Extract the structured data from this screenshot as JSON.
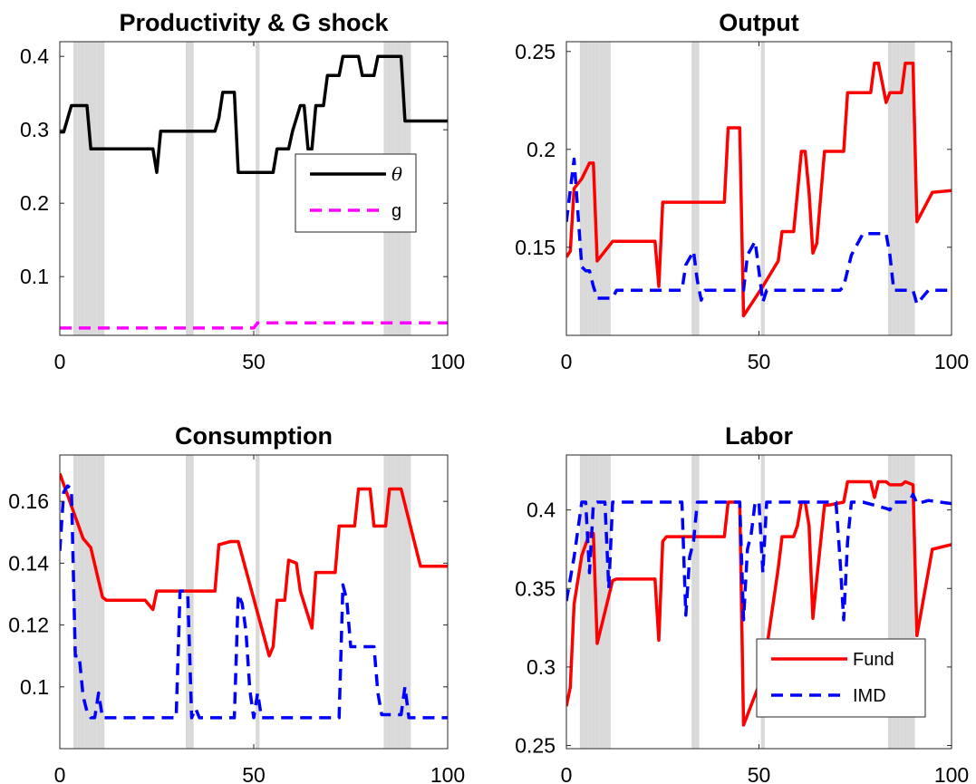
{
  "chart_data": [
    {
      "type": "line",
      "title": "Productivity & G shock",
      "xlim": [
        0,
        100
      ],
      "ylim": [
        0.02,
        0.42
      ],
      "xticks": [
        "0",
        "50",
        "100"
      ],
      "yticks": [
        "0.1",
        "0.2",
        "0.3",
        "0.4"
      ],
      "shaded_x": [
        4,
        5,
        6,
        7,
        8,
        9,
        10,
        11,
        33,
        34,
        51,
        84,
        85,
        86,
        87,
        88,
        89,
        90
      ],
      "legend": {
        "position": "center-right"
      },
      "series": [
        {
          "name": "θ",
          "color": "#000000",
          "dash": "solid",
          "x": [
            0,
            1,
            3,
            7,
            8,
            24,
            25,
            26,
            40,
            41,
            42,
            45,
            46,
            47,
            55,
            56,
            59,
            60,
            62,
            63,
            64,
            65,
            66,
            68,
            69,
            72,
            73,
            77,
            78,
            79,
            81,
            82,
            85,
            86,
            88,
            89,
            90,
            100
          ],
          "y": [
            0.297,
            0.297,
            0.333,
            0.333,
            0.274,
            0.274,
            0.242,
            0.298,
            0.298,
            0.316,
            0.351,
            0.351,
            0.242,
            0.242,
            0.242,
            0.274,
            0.274,
            0.298,
            0.333,
            0.333,
            0.274,
            0.274,
            0.333,
            0.333,
            0.374,
            0.374,
            0.4,
            0.4,
            0.374,
            0.374,
            0.374,
            0.4,
            0.4,
            0.4,
            0.4,
            0.312,
            0.312,
            0.312
          ]
        },
        {
          "name": "g",
          "color": "#ff00ff",
          "dash": "dashed",
          "x": [
            0,
            50,
            51,
            52,
            100
          ],
          "y": [
            0.03,
            0.03,
            0.037,
            0.037,
            0.037
          ]
        }
      ]
    },
    {
      "type": "line",
      "title": "Output",
      "xlim": [
        0,
        100
      ],
      "ylim": [
        0.105,
        0.255
      ],
      "xticks": [
        "0",
        "50",
        "100"
      ],
      "yticks": [
        "0.15",
        "0.2",
        "0.25"
      ],
      "shaded_x": [
        4,
        5,
        6,
        7,
        8,
        9,
        10,
        11,
        33,
        34,
        51,
        84,
        85,
        86,
        87,
        88,
        89,
        90
      ],
      "series": [
        {
          "name": "Fund",
          "color": "#ff0000",
          "dash": "solid",
          "x": [
            0,
            1,
            2,
            4,
            6,
            7,
            8,
            12,
            13,
            19,
            22,
            23,
            24,
            25,
            26,
            35,
            41,
            42,
            44,
            45,
            46,
            51,
            55,
            56,
            58,
            59,
            60,
            61,
            62,
            63,
            64,
            65,
            67,
            68,
            72,
            73,
            75,
            76,
            79,
            80,
            81,
            83,
            84,
            87,
            88,
            90,
            91,
            95,
            100
          ],
          "y": [
            0.145,
            0.148,
            0.18,
            0.185,
            0.193,
            0.193,
            0.143,
            0.153,
            0.153,
            0.153,
            0.153,
            0.153,
            0.13,
            0.173,
            0.173,
            0.173,
            0.173,
            0.211,
            0.211,
            0.211,
            0.115,
            0.13,
            0.143,
            0.158,
            0.158,
            0.158,
            0.178,
            0.199,
            0.199,
            0.178,
            0.147,
            0.152,
            0.199,
            0.199,
            0.199,
            0.229,
            0.229,
            0.229,
            0.229,
            0.244,
            0.244,
            0.224,
            0.229,
            0.229,
            0.244,
            0.244,
            0.163,
            0.178,
            0.179
          ]
        },
        {
          "name": "IMD",
          "color": "#0000ff",
          "dash": "dashed",
          "x": [
            0,
            2,
            4,
            5,
            6,
            7,
            8,
            12,
            13,
            15,
            30,
            31,
            33,
            34,
            35,
            36,
            38,
            46,
            47,
            49,
            51,
            52,
            55,
            70,
            71,
            72,
            74,
            77,
            83,
            84,
            85,
            88,
            89,
            90,
            91,
            94,
            100
          ],
          "y": [
            0.163,
            0.195,
            0.14,
            0.138,
            0.138,
            0.13,
            0.124,
            0.124,
            0.128,
            0.128,
            0.128,
            0.141,
            0.148,
            0.133,
            0.123,
            0.128,
            0.128,
            0.128,
            0.146,
            0.153,
            0.122,
            0.128,
            0.128,
            0.128,
            0.128,
            0.13,
            0.146,
            0.157,
            0.157,
            0.146,
            0.128,
            0.128,
            0.128,
            0.128,
            0.121,
            0.128,
            0.128
          ]
        }
      ]
    },
    {
      "type": "line",
      "title": "Consumption",
      "xlim": [
        0,
        100
      ],
      "ylim": [
        0.08,
        0.175
      ],
      "xticks": [
        "0",
        "50",
        "100"
      ],
      "yticks": [
        "0.1",
        "0.12",
        "0.14",
        "0.16"
      ],
      "shaded_x": [
        4,
        5,
        6,
        7,
        8,
        9,
        10,
        11,
        33,
        34,
        51,
        84,
        85,
        86,
        87,
        88,
        89,
        90
      ],
      "series": [
        {
          "name": "Fund",
          "color": "#ff0000",
          "dash": "solid",
          "x": [
            0,
            4,
            6,
            8,
            11,
            12,
            16,
            22,
            24,
            25,
            30,
            40,
            41,
            44,
            45,
            46,
            54,
            55,
            56,
            58,
            59,
            61,
            62,
            65,
            66,
            71,
            72,
            75,
            76,
            77,
            80,
            81,
            84,
            85,
            88,
            93,
            100
          ],
          "y": [
            0.169,
            0.155,
            0.148,
            0.145,
            0.129,
            0.128,
            0.128,
            0.128,
            0.125,
            0.131,
            0.131,
            0.131,
            0.146,
            0.147,
            0.147,
            0.147,
            0.11,
            0.113,
            0.128,
            0.128,
            0.141,
            0.14,
            0.131,
            0.119,
            0.137,
            0.137,
            0.152,
            0.152,
            0.152,
            0.164,
            0.164,
            0.152,
            0.152,
            0.164,
            0.164,
            0.139,
            0.139
          ]
        },
        {
          "name": "IMD",
          "color": "#0000ff",
          "dash": "dashed",
          "x": [
            0,
            1,
            2,
            3,
            4,
            5,
            6,
            7,
            8,
            9,
            10,
            11,
            12,
            14,
            30,
            31,
            32,
            33,
            34,
            35,
            36,
            38,
            45,
            46,
            47,
            48,
            49,
            50,
            51,
            52,
            53,
            54,
            70,
            71,
            72,
            73,
            74,
            75,
            78,
            81,
            82,
            83,
            84,
            85,
            86,
            87,
            88,
            89,
            90,
            100
          ],
          "y": [
            0.144,
            0.163,
            0.165,
            0.164,
            0.11,
            0.11,
            0.097,
            0.092,
            0.09,
            0.09,
            0.098,
            0.09,
            0.09,
            0.09,
            0.09,
            0.131,
            0.131,
            0.13,
            0.09,
            0.093,
            0.09,
            0.09,
            0.09,
            0.13,
            0.127,
            0.118,
            0.099,
            0.09,
            0.098,
            0.09,
            0.09,
            0.09,
            0.09,
            0.09,
            0.09,
            0.133,
            0.128,
            0.113,
            0.113,
            0.113,
            0.098,
            0.091,
            0.091,
            0.091,
            0.091,
            0.091,
            0.091,
            0.1,
            0.09,
            0.09
          ]
        }
      ]
    },
    {
      "type": "line",
      "title": "Labor",
      "xlim": [
        0,
        100
      ],
      "ylim": [
        0.248,
        0.435
      ],
      "xticks": [
        "0",
        "50",
        "100"
      ],
      "yticks": [
        "0.25",
        "0.3",
        "0.35",
        "0.4"
      ],
      "shaded_x": [
        4,
        5,
        6,
        7,
        8,
        9,
        10,
        11,
        33,
        34,
        51,
        84,
        85,
        86,
        87,
        88,
        89,
        90
      ],
      "legend": {
        "position": "bottom-right"
      },
      "series": [
        {
          "name": "Fund",
          "color": "#ff0000",
          "dash": "solid",
          "x": [
            0,
            1,
            2,
            4,
            6,
            7,
            8,
            12,
            13,
            19,
            22,
            23,
            24,
            25,
            26,
            35,
            41,
            42,
            44,
            45,
            46,
            51,
            55,
            56,
            58,
            59,
            60,
            61,
            62,
            63,
            64,
            65,
            67,
            68,
            72,
            73,
            75,
            76,
            79,
            80,
            81,
            83,
            84,
            87,
            88,
            90,
            91,
            95,
            100
          ],
          "y": [
            0.275,
            0.287,
            0.34,
            0.371,
            0.385,
            0.385,
            0.315,
            0.355,
            0.356,
            0.356,
            0.356,
            0.356,
            0.317,
            0.38,
            0.383,
            0.383,
            0.383,
            0.405,
            0.405,
            0.405,
            0.263,
            0.295,
            0.363,
            0.383,
            0.383,
            0.383,
            0.39,
            0.405,
            0.405,
            0.39,
            0.331,
            0.356,
            0.403,
            0.403,
            0.405,
            0.418,
            0.418,
            0.418,
            0.418,
            0.408,
            0.418,
            0.418,
            0.416,
            0.416,
            0.418,
            0.416,
            0.32,
            0.375,
            0.378
          ]
        },
        {
          "name": "IMD",
          "color": "#0000ff",
          "dash": "dashed",
          "x": [
            0,
            2,
            4,
            5,
            6,
            7,
            8,
            10,
            11,
            12,
            14,
            30,
            31,
            32,
            33,
            34,
            35,
            36,
            38,
            45,
            46,
            47,
            48,
            49,
            50,
            51,
            52,
            55,
            70,
            71,
            72,
            73,
            74,
            75,
            77,
            83,
            84,
            85,
            88,
            89,
            90,
            91,
            94,
            100
          ],
          "y": [
            0.342,
            0.37,
            0.405,
            0.405,
            0.36,
            0.404,
            0.405,
            0.405,
            0.35,
            0.405,
            0.405,
            0.405,
            0.333,
            0.37,
            0.38,
            0.405,
            0.405,
            0.405,
            0.405,
            0.405,
            0.33,
            0.375,
            0.385,
            0.405,
            0.405,
            0.36,
            0.405,
            0.405,
            0.405,
            0.37,
            0.33,
            0.38,
            0.405,
            0.405,
            0.405,
            0.401,
            0.4,
            0.405,
            0.405,
            0.405,
            0.41,
            0.404,
            0.406,
            0.404
          ]
        }
      ]
    }
  ]
}
